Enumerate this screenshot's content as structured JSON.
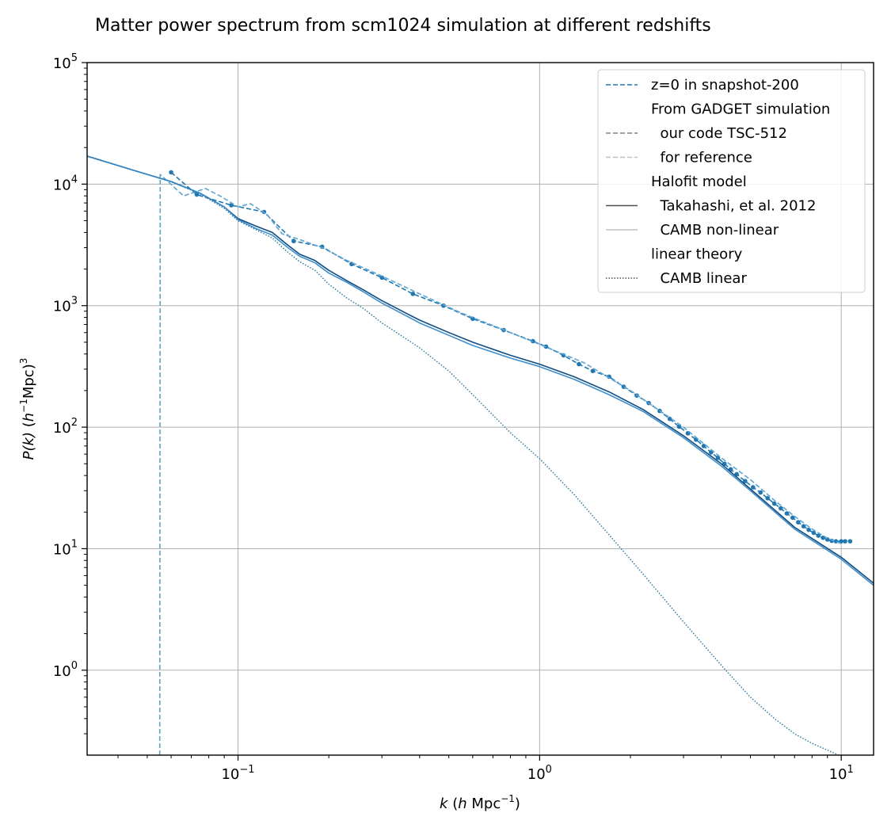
{
  "chart_data": {
    "type": "line",
    "title": "Matter power spectrum from scm1024 simulation at different redshifts",
    "xlabel": {
      "pre": "k",
      "mid": "  (",
      "it": "h",
      "post": " Mpc",
      "sup": "−1",
      "end": ")"
    },
    "ylabel": {
      "pre": "P(k)",
      "mid": "  (",
      "it": "h",
      "sup1": "−1",
      "post": "Mpc)",
      "sup2": "3"
    },
    "xscale": "log",
    "yscale": "log",
    "xlim": [
      0.0316,
      12.8
    ],
    "ylim": [
      0.2,
      100000
    ],
    "grid": true,
    "legend_position": "top-right",
    "x_ticks": [
      {
        "value": 0.1,
        "base": "10",
        "exp": "−1"
      },
      {
        "value": 1,
        "base": "10",
        "exp": "0"
      },
      {
        "value": 10,
        "base": "10",
        "exp": "1"
      }
    ],
    "y_ticks": [
      {
        "value": 1,
        "base": "10",
        "exp": "0"
      },
      {
        "value": 10,
        "base": "10",
        "exp": "1"
      },
      {
        "value": 100,
        "base": "10",
        "exp": "2"
      },
      {
        "value": 1000,
        "base": "10",
        "exp": "3"
      },
      {
        "value": 10000,
        "base": "10",
        "exp": "4"
      },
      {
        "value": 100000,
        "base": "10",
        "exp": "5"
      }
    ],
    "colors": {
      "snapshot": "#1f77b4",
      "reference": "#5aa6d8",
      "halofit": "#0f4c81",
      "camb_nonlinear": "#3d8ed0",
      "camb_linear": "#1f77b4",
      "legend_gray_dark": "#808080",
      "legend_gray_light": "#c0c0c0",
      "legend_solid_dark": "#505050",
      "grid": "#b0b0b0"
    },
    "legend": [
      {
        "label": "z=0 in snapshot-200",
        "style": "dashed",
        "color": "#1f77b4"
      },
      {
        "label": "From GADGET simulation",
        "style": "none",
        "color": ""
      },
      {
        "label": "  our code TSC-512",
        "style": "dashed",
        "color": "#808080"
      },
      {
        "label": "  for reference",
        "style": "dashed",
        "color": "#c0c0c0"
      },
      {
        "label": "Halofit model",
        "style": "none",
        "color": ""
      },
      {
        "label": "  Takahashi, et al. 2012",
        "style": "solid",
        "color": "#505050"
      },
      {
        "label": "  CAMB non-linear",
        "style": "solid",
        "color": "#c0c0c0"
      },
      {
        "label": "linear theory",
        "style": "none",
        "color": ""
      },
      {
        "label": "  CAMB linear",
        "style": "dotted",
        "color": "#505050"
      }
    ],
    "series": [
      {
        "name": "our code TSC-512",
        "style": "dashed-markers",
        "color": "#1f77b4",
        "x": [
          0.06,
          0.073,
          0.095,
          0.122,
          0.153,
          0.19,
          0.238,
          0.3,
          0.38,
          0.48,
          0.6,
          0.76,
          0.95,
          1.05,
          1.2,
          1.35,
          1.5,
          1.7,
          1.9,
          2.1,
          2.3,
          2.5,
          2.7,
          2.9,
          3.1,
          3.3,
          3.5,
          3.7,
          3.9,
          4.1,
          4.3,
          4.5,
          4.8,
          5.1,
          5.4,
          5.7,
          6.0,
          6.3,
          6.6,
          6.9,
          7.2,
          7.5,
          7.8,
          8.1,
          8.4,
          8.7,
          9.0,
          9.3,
          9.6,
          10.0,
          10.3,
          10.7
        ],
        "y": [
          12500,
          8200,
          6700,
          5900,
          3400,
          3050,
          2200,
          1700,
          1250,
          1000,
          780,
          630,
          510,
          460,
          390,
          330,
          290,
          260,
          215,
          182,
          158,
          136,
          117,
          101,
          89,
          79,
          70,
          62,
          56,
          50,
          45,
          41,
          36,
          32,
          29,
          26,
          23.5,
          21.5,
          19.5,
          18,
          16.5,
          15.3,
          14.3,
          13.5,
          12.8,
          12.3,
          11.9,
          11.6,
          11.5,
          11.5,
          11.5,
          11.5
        ]
      },
      {
        "name": "for reference",
        "style": "dashed",
        "color": "#5aa6d8",
        "x": [
          0.055,
          0.0552,
          0.066,
          0.078,
          0.088,
          0.1,
          0.11,
          0.125,
          0.14,
          0.16,
          0.19,
          0.23,
          0.3,
          0.4,
          0.55,
          0.75,
          1.0,
          1.4,
          2.0,
          3.0,
          4.0,
          5.0,
          6.0,
          7.0,
          8.0,
          9.0,
          10.0
        ],
        "y": [
          0.2,
          12000,
          8000,
          9200,
          7900,
          6500,
          6900,
          5600,
          3900,
          3500,
          3000,
          2350,
          1750,
          1250,
          870,
          640,
          480,
          340,
          200,
          100,
          56,
          37,
          25,
          18.5,
          14.5,
          12.2,
          11
        ]
      },
      {
        "name": "Takahashi, et al. 2012",
        "style": "solid",
        "color": "#0f4c81",
        "x": [
          0.0316,
          0.045,
          0.06,
          0.075,
          0.09,
          0.1,
          0.115,
          0.13,
          0.145,
          0.16,
          0.18,
          0.2,
          0.23,
          0.26,
          0.3,
          0.35,
          0.4,
          0.5,
          0.6,
          0.8,
          1.0,
          1.3,
          1.7,
          2.2,
          3.0,
          4.0,
          5.0,
          7.0,
          10.0,
          12.8
        ],
        "y": [
          17000,
          13000,
          10500,
          8400,
          6500,
          5200,
          4500,
          4000,
          3200,
          2650,
          2350,
          1950,
          1600,
          1350,
          1100,
          900,
          760,
          600,
          500,
          390,
          330,
          260,
          195,
          140,
          85,
          50,
          31,
          15,
          8.5,
          5.2
        ]
      },
      {
        "name": "CAMB non-linear",
        "style": "solid",
        "color": "#3d8ed0",
        "x": [
          0.0316,
          0.045,
          0.06,
          0.075,
          0.09,
          0.1,
          0.115,
          0.13,
          0.145,
          0.16,
          0.18,
          0.2,
          0.23,
          0.26,
          0.3,
          0.35,
          0.4,
          0.5,
          0.6,
          0.8,
          1.0,
          1.3,
          1.7,
          2.2,
          3.0,
          4.0,
          5.0,
          7.0,
          10.0,
          12.8
        ],
        "y": [
          17000,
          13000,
          10500,
          8400,
          6500,
          5100,
          4300,
          3800,
          3050,
          2550,
          2250,
          1850,
          1550,
          1300,
          1050,
          860,
          720,
          570,
          470,
          370,
          315,
          248,
          185,
          135,
          82,
          48,
          30,
          14.5,
          8.2,
          5.0
        ]
      },
      {
        "name": "CAMB linear",
        "style": "dotted",
        "color": "#1f77b4",
        "x": [
          0.0316,
          0.045,
          0.06,
          0.075,
          0.09,
          0.1,
          0.115,
          0.13,
          0.145,
          0.16,
          0.18,
          0.2,
          0.23,
          0.26,
          0.3,
          0.35,
          0.4,
          0.5,
          0.6,
          0.8,
          1.0,
          1.3,
          1.7,
          2.2,
          3.0,
          4.0,
          5.0,
          6.0,
          7.0,
          8.0,
          9.0,
          9.8
        ],
        "y": [
          17000,
          13000,
          10500,
          8300,
          6300,
          5000,
          4200,
          3600,
          2800,
          2300,
          1950,
          1500,
          1150,
          950,
          720,
          560,
          450,
          290,
          185,
          90,
          55,
          28,
          13,
          6.2,
          2.5,
          1.1,
          0.6,
          0.4,
          0.3,
          0.25,
          0.22,
          0.2
        ]
      }
    ]
  }
}
